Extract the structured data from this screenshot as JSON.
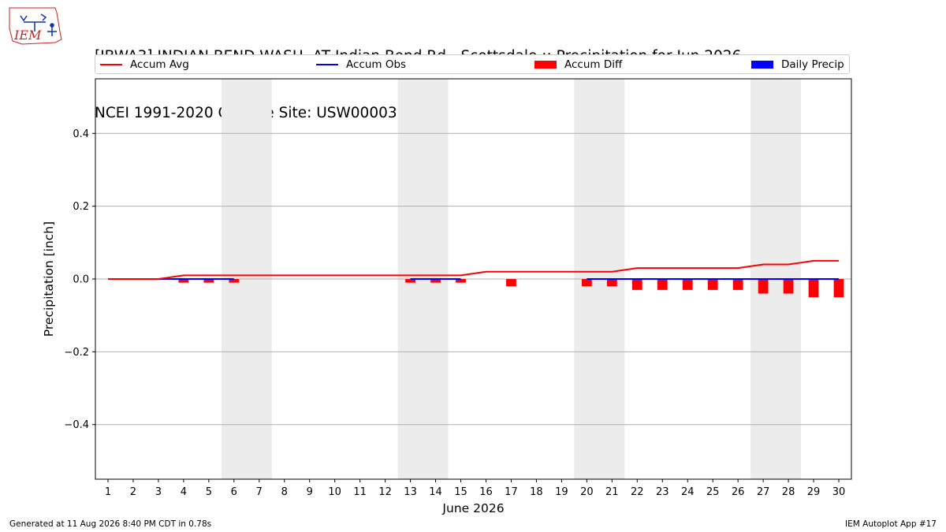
{
  "header": {
    "title_line1": "[IBWA3] INDIAN BEND WASH  AT Indian Bend Rd - Scottsdale :: Precipitation for Jun 2026",
    "title_line2": "NCEI 1991-2020 Climate Site: USW00003192"
  },
  "logo": {
    "text": "IEM"
  },
  "legend": {
    "accum_avg": "Accum Avg",
    "accum_obs": "Accum Obs",
    "accum_diff": "Accum Diff",
    "daily_precip": "Daily Precip"
  },
  "colors": {
    "accum_avg": "#ff0000",
    "accum_obs": "#0000ff",
    "accum_diff": "#ff0000",
    "daily_precip": "#0000ff",
    "weekend_shade": "#ececec",
    "grid": "#b0b0b0"
  },
  "footer": {
    "generated": "Generated at 11 Aug 2026 8:40 PM CDT in 0.78s",
    "app": "IEM Autoplot App #17"
  },
  "chart_data": {
    "type": "line",
    "title": "[IBWA3] INDIAN BEND WASH  AT Indian Bend Rd - Scottsdale :: Precipitation for Jun 2026",
    "subtitle": "NCEI 1991-2020 Climate Site: USW00003192",
    "xlabel": "June 2026",
    "ylabel": "Precipitation [inch]",
    "x": [
      1,
      2,
      3,
      4,
      5,
      6,
      7,
      8,
      9,
      10,
      11,
      12,
      13,
      14,
      15,
      16,
      17,
      18,
      19,
      20,
      21,
      22,
      23,
      24,
      25,
      26,
      27,
      28,
      29,
      30
    ],
    "xlim": [
      0.5,
      30.5
    ],
    "ylim": [
      -0.55,
      0.55
    ],
    "yticks": [
      -0.4,
      -0.2,
      0.0,
      0.2,
      0.4
    ],
    "ytick_labels": [
      "−0.4",
      "−0.2",
      "0.0",
      "0.2",
      "0.4"
    ],
    "grid": "horizontal",
    "legend_position": "top",
    "weekend_shading": [
      [
        5.5,
        7.5
      ],
      [
        12.5,
        14.5
      ],
      [
        19.5,
        21.5
      ],
      [
        26.5,
        28.5
      ]
    ],
    "series": [
      {
        "name": "Accum Avg",
        "type": "line",
        "x": [
          1,
          2,
          3,
          4,
          5,
          6,
          7,
          8,
          9,
          10,
          11,
          12,
          13,
          14,
          15,
          16,
          17,
          18,
          19,
          20,
          21,
          22,
          23,
          24,
          25,
          26,
          27,
          28,
          29,
          30
        ],
        "values": [
          0.0,
          0.0,
          0.0,
          0.01,
          0.01,
          0.01,
          0.01,
          0.01,
          0.01,
          0.01,
          0.01,
          0.01,
          0.01,
          0.01,
          0.01,
          0.02,
          0.02,
          0.02,
          0.02,
          0.02,
          0.02,
          0.03,
          0.03,
          0.03,
          0.03,
          0.03,
          0.04,
          0.04,
          0.05,
          0.05
        ]
      },
      {
        "name": "Accum Obs",
        "type": "line",
        "segments": [
          {
            "x": [
              3,
              4,
              5,
              6
            ],
            "values": [
              0.0,
              0.0,
              0.0,
              0.0
            ]
          },
          {
            "x": [
              13,
              14,
              15
            ],
            "values": [
              0.0,
              0.0,
              0.0
            ]
          },
          {
            "x": [
              20,
              21,
              22,
              23,
              24,
              25,
              26,
              27,
              28,
              29,
              30
            ],
            "values": [
              0,
              0,
              0,
              0,
              0,
              0,
              0,
              0,
              0,
              0,
              0
            ]
          }
        ]
      },
      {
        "name": "Accum Diff",
        "type": "bar",
        "x": [
          4,
          5,
          6,
          13,
          14,
          15,
          17,
          20,
          21,
          22,
          23,
          24,
          25,
          26,
          27,
          28,
          29,
          30
        ],
        "values": [
          -0.01,
          -0.01,
          -0.01,
          -0.01,
          -0.01,
          -0.01,
          -0.02,
          -0.02,
          -0.02,
          -0.03,
          -0.03,
          -0.03,
          -0.03,
          -0.03,
          -0.04,
          -0.04,
          -0.05,
          -0.05
        ]
      },
      {
        "name": "Daily Precip",
        "type": "bar",
        "x": [],
        "values": []
      }
    ]
  }
}
